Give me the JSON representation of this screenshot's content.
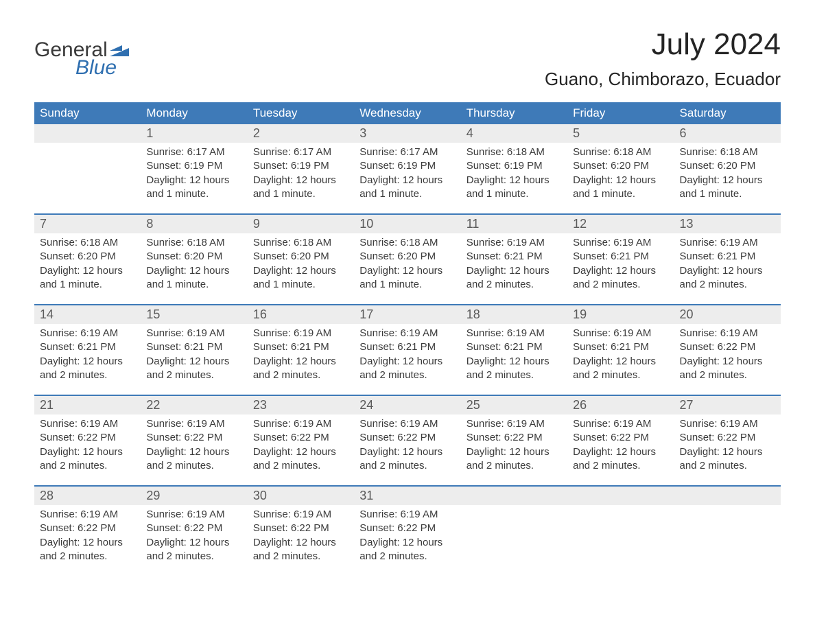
{
  "logo": {
    "word1": "General",
    "word2": "Blue"
  },
  "title": "July 2024",
  "location": "Guano, Chimborazo, Ecuador",
  "colors": {
    "header_bg": "#3e7ab8",
    "header_text": "#ffffff",
    "daynum_bg": "#ededed",
    "daynum_text": "#5a5a5a",
    "body_text": "#3b3b3b",
    "logo_gray": "#3a3a3a",
    "logo_blue": "#2f6fb0",
    "week_border": "#3e7ab8",
    "background": "#ffffff"
  },
  "days_of_week": [
    "Sunday",
    "Monday",
    "Tuesday",
    "Wednesday",
    "Thursday",
    "Friday",
    "Saturday"
  ],
  "weeks": [
    [
      {
        "n": "",
        "sunrise": "",
        "sunset": "",
        "daylight": ""
      },
      {
        "n": "1",
        "sunrise": "Sunrise: 6:17 AM",
        "sunset": "Sunset: 6:19 PM",
        "daylight": "Daylight: 12 hours and 1 minute."
      },
      {
        "n": "2",
        "sunrise": "Sunrise: 6:17 AM",
        "sunset": "Sunset: 6:19 PM",
        "daylight": "Daylight: 12 hours and 1 minute."
      },
      {
        "n": "3",
        "sunrise": "Sunrise: 6:17 AM",
        "sunset": "Sunset: 6:19 PM",
        "daylight": "Daylight: 12 hours and 1 minute."
      },
      {
        "n": "4",
        "sunrise": "Sunrise: 6:18 AM",
        "sunset": "Sunset: 6:19 PM",
        "daylight": "Daylight: 12 hours and 1 minute."
      },
      {
        "n": "5",
        "sunrise": "Sunrise: 6:18 AM",
        "sunset": "Sunset: 6:20 PM",
        "daylight": "Daylight: 12 hours and 1 minute."
      },
      {
        "n": "6",
        "sunrise": "Sunrise: 6:18 AM",
        "sunset": "Sunset: 6:20 PM",
        "daylight": "Daylight: 12 hours and 1 minute."
      }
    ],
    [
      {
        "n": "7",
        "sunrise": "Sunrise: 6:18 AM",
        "sunset": "Sunset: 6:20 PM",
        "daylight": "Daylight: 12 hours and 1 minute."
      },
      {
        "n": "8",
        "sunrise": "Sunrise: 6:18 AM",
        "sunset": "Sunset: 6:20 PM",
        "daylight": "Daylight: 12 hours and 1 minute."
      },
      {
        "n": "9",
        "sunrise": "Sunrise: 6:18 AM",
        "sunset": "Sunset: 6:20 PM",
        "daylight": "Daylight: 12 hours and 1 minute."
      },
      {
        "n": "10",
        "sunrise": "Sunrise: 6:18 AM",
        "sunset": "Sunset: 6:20 PM",
        "daylight": "Daylight: 12 hours and 1 minute."
      },
      {
        "n": "11",
        "sunrise": "Sunrise: 6:19 AM",
        "sunset": "Sunset: 6:21 PM",
        "daylight": "Daylight: 12 hours and 2 minutes."
      },
      {
        "n": "12",
        "sunrise": "Sunrise: 6:19 AM",
        "sunset": "Sunset: 6:21 PM",
        "daylight": "Daylight: 12 hours and 2 minutes."
      },
      {
        "n": "13",
        "sunrise": "Sunrise: 6:19 AM",
        "sunset": "Sunset: 6:21 PM",
        "daylight": "Daylight: 12 hours and 2 minutes."
      }
    ],
    [
      {
        "n": "14",
        "sunrise": "Sunrise: 6:19 AM",
        "sunset": "Sunset: 6:21 PM",
        "daylight": "Daylight: 12 hours and 2 minutes."
      },
      {
        "n": "15",
        "sunrise": "Sunrise: 6:19 AM",
        "sunset": "Sunset: 6:21 PM",
        "daylight": "Daylight: 12 hours and 2 minutes."
      },
      {
        "n": "16",
        "sunrise": "Sunrise: 6:19 AM",
        "sunset": "Sunset: 6:21 PM",
        "daylight": "Daylight: 12 hours and 2 minutes."
      },
      {
        "n": "17",
        "sunrise": "Sunrise: 6:19 AM",
        "sunset": "Sunset: 6:21 PM",
        "daylight": "Daylight: 12 hours and 2 minutes."
      },
      {
        "n": "18",
        "sunrise": "Sunrise: 6:19 AM",
        "sunset": "Sunset: 6:21 PM",
        "daylight": "Daylight: 12 hours and 2 minutes."
      },
      {
        "n": "19",
        "sunrise": "Sunrise: 6:19 AM",
        "sunset": "Sunset: 6:21 PM",
        "daylight": "Daylight: 12 hours and 2 minutes."
      },
      {
        "n": "20",
        "sunrise": "Sunrise: 6:19 AM",
        "sunset": "Sunset: 6:22 PM",
        "daylight": "Daylight: 12 hours and 2 minutes."
      }
    ],
    [
      {
        "n": "21",
        "sunrise": "Sunrise: 6:19 AM",
        "sunset": "Sunset: 6:22 PM",
        "daylight": "Daylight: 12 hours and 2 minutes."
      },
      {
        "n": "22",
        "sunrise": "Sunrise: 6:19 AM",
        "sunset": "Sunset: 6:22 PM",
        "daylight": "Daylight: 12 hours and 2 minutes."
      },
      {
        "n": "23",
        "sunrise": "Sunrise: 6:19 AM",
        "sunset": "Sunset: 6:22 PM",
        "daylight": "Daylight: 12 hours and 2 minutes."
      },
      {
        "n": "24",
        "sunrise": "Sunrise: 6:19 AM",
        "sunset": "Sunset: 6:22 PM",
        "daylight": "Daylight: 12 hours and 2 minutes."
      },
      {
        "n": "25",
        "sunrise": "Sunrise: 6:19 AM",
        "sunset": "Sunset: 6:22 PM",
        "daylight": "Daylight: 12 hours and 2 minutes."
      },
      {
        "n": "26",
        "sunrise": "Sunrise: 6:19 AM",
        "sunset": "Sunset: 6:22 PM",
        "daylight": "Daylight: 12 hours and 2 minutes."
      },
      {
        "n": "27",
        "sunrise": "Sunrise: 6:19 AM",
        "sunset": "Sunset: 6:22 PM",
        "daylight": "Daylight: 12 hours and 2 minutes."
      }
    ],
    [
      {
        "n": "28",
        "sunrise": "Sunrise: 6:19 AM",
        "sunset": "Sunset: 6:22 PM",
        "daylight": "Daylight: 12 hours and 2 minutes."
      },
      {
        "n": "29",
        "sunrise": "Sunrise: 6:19 AM",
        "sunset": "Sunset: 6:22 PM",
        "daylight": "Daylight: 12 hours and 2 minutes."
      },
      {
        "n": "30",
        "sunrise": "Sunrise: 6:19 AM",
        "sunset": "Sunset: 6:22 PM",
        "daylight": "Daylight: 12 hours and 2 minutes."
      },
      {
        "n": "31",
        "sunrise": "Sunrise: 6:19 AM",
        "sunset": "Sunset: 6:22 PM",
        "daylight": "Daylight: 12 hours and 2 minutes."
      },
      {
        "n": "",
        "sunrise": "",
        "sunset": "",
        "daylight": ""
      },
      {
        "n": "",
        "sunrise": "",
        "sunset": "",
        "daylight": ""
      },
      {
        "n": "",
        "sunrise": "",
        "sunset": "",
        "daylight": ""
      }
    ]
  ]
}
